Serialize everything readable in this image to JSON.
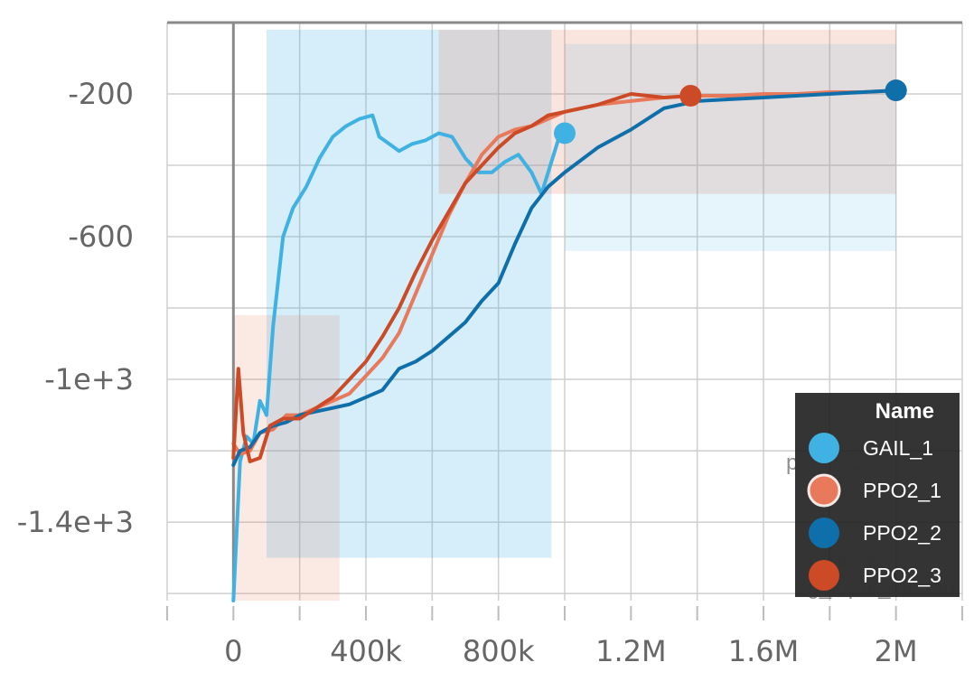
{
  "chart_data": {
    "type": "line",
    "title": "",
    "xlabel": "",
    "ylabel": "",
    "xlim": [
      -200000,
      2200000
    ],
    "ylim": [
      -1620,
      0
    ],
    "x_ticks": [
      0,
      400000,
      800000,
      1200000,
      1600000,
      2000000
    ],
    "x_tick_labels": [
      "0",
      "400k",
      "800k",
      "1.2M",
      "1.6M",
      "2M"
    ],
    "y_ticks": [
      -200,
      -600,
      -1000,
      -1400
    ],
    "y_tick_labels": [
      "-200",
      "-600",
      "-1e+3",
      "-1.4e+3"
    ],
    "grid": true,
    "legend": {
      "title": "Name",
      "position": "bottom-right"
    },
    "series": [
      {
        "name": "GAIL_1",
        "color": "#3fb1e3",
        "x": [
          0,
          20000,
          40000,
          60000,
          80000,
          100000,
          120000,
          150000,
          180000,
          220000,
          260000,
          300000,
          340000,
          380000,
          420000,
          440000,
          470000,
          500000,
          540000,
          580000,
          620000,
          660000,
          700000,
          740000,
          780000,
          820000,
          860000,
          900000,
          930000,
          950000,
          980000,
          1000000
        ],
        "y": [
          -1620,
          -1230,
          -1160,
          -1180,
          -1060,
          -1100,
          -850,
          -600,
          -520,
          -460,
          -380,
          -320,
          -290,
          -270,
          -260,
          -320,
          -340,
          -360,
          -340,
          -330,
          -310,
          -320,
          -380,
          -420,
          -420,
          -390,
          -370,
          -420,
          -480,
          -420,
          -330,
          -310
        ]
      },
      {
        "name": "PPO2_1",
        "color": "#e8795a",
        "x": [
          0,
          20000,
          50000,
          80000,
          120000,
          160000,
          200000,
          250000,
          300000,
          350000,
          400000,
          450000,
          500000,
          550000,
          600000,
          650000,
          700000,
          750000,
          800000,
          850000,
          900000,
          950000,
          1000000,
          1100000,
          1200000,
          1300000,
          1400000,
          1500000,
          1600000,
          1700000,
          1800000,
          1900000,
          2000000
        ],
        "y": [
          -1180,
          -1210,
          -1200,
          -1150,
          -1140,
          -1100,
          -1100,
          -1080,
          -1060,
          -1040,
          -990,
          -940,
          -870,
          -760,
          -650,
          -540,
          -450,
          -370,
          -320,
          -300,
          -290,
          -270,
          -250,
          -230,
          -220,
          -210,
          -205,
          -205,
          -200,
          -200,
          -195,
          -195,
          -190
        ]
      },
      {
        "name": "PPO2_2",
        "color": "#0f6fab",
        "x": [
          0,
          20000,
          50000,
          80000,
          120000,
          160000,
          200000,
          250000,
          300000,
          350000,
          400000,
          450000,
          500000,
          550000,
          600000,
          650000,
          700000,
          750000,
          800000,
          850000,
          900000,
          950000,
          1000000,
          1100000,
          1200000,
          1300000,
          1400000,
          1500000,
          1600000,
          1700000,
          1800000,
          1900000,
          2000000
        ],
        "y": [
          -1240,
          -1200,
          -1190,
          -1150,
          -1130,
          -1120,
          -1100,
          -1090,
          -1080,
          -1070,
          -1050,
          -1030,
          -970,
          -950,
          -920,
          -880,
          -840,
          -780,
          -730,
          -620,
          -520,
          -460,
          -420,
          -350,
          -300,
          -240,
          -220,
          -215,
          -210,
          -205,
          -200,
          -195,
          -190
        ]
      },
      {
        "name": "PPO2_3",
        "color": "#cc4a26",
        "x": [
          0,
          15000,
          30000,
          50000,
          80000,
          110000,
          150000,
          200000,
          250000,
          300000,
          350000,
          400000,
          450000,
          500000,
          550000,
          600000,
          650000,
          700000,
          750000,
          800000,
          850000,
          900000,
          950000,
          1000000,
          1100000,
          1200000,
          1300000,
          1380000
        ],
        "y": [
          -1220,
          -970,
          -1150,
          -1230,
          -1220,
          -1130,
          -1110,
          -1110,
          -1080,
          -1050,
          -1000,
          -950,
          -880,
          -800,
          -700,
          -610,
          -530,
          -450,
          -400,
          -350,
          -310,
          -290,
          -260,
          -250,
          -230,
          -200,
          -210,
          -205
        ]
      }
    ]
  },
  "legend_overlay_text": [
    "put_info",
    "dvantage",
    "ng_input_info/ad"
  ]
}
